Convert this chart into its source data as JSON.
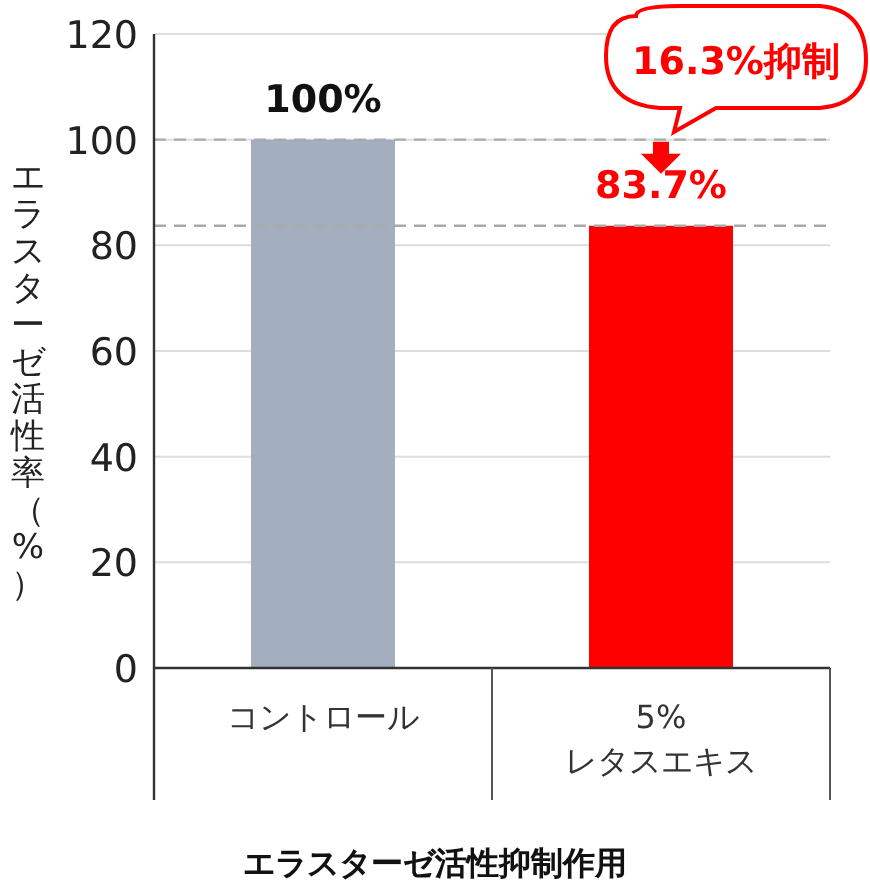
{
  "chart_data": {
    "type": "bar",
    "title": "エラスターゼ活性抑制作用",
    "ylabel": "エラスターゼ活性率（%）",
    "categories": [
      "コントロール",
      "5%\nレタスエキス"
    ],
    "values": [
      100,
      83.7
    ],
    "colors": [
      "#a3afbf",
      "#ff0000"
    ],
    "value_labels": [
      "100%",
      "83.7%"
    ],
    "ylim": [
      0,
      120
    ],
    "yticks": [
      0,
      20,
      40,
      60,
      80,
      100,
      120
    ],
    "grid": "y",
    "ref_lines": [
      {
        "axis": "y",
        "value": 100,
        "color": "#aaaaaa",
        "line_style": "dashed"
      },
      {
        "axis": "y",
        "value": 83.7,
        "color": "#aaaaaa",
        "line_style": "dashed"
      }
    ],
    "annotations": [
      "16.3%抑制"
    ]
  }
}
